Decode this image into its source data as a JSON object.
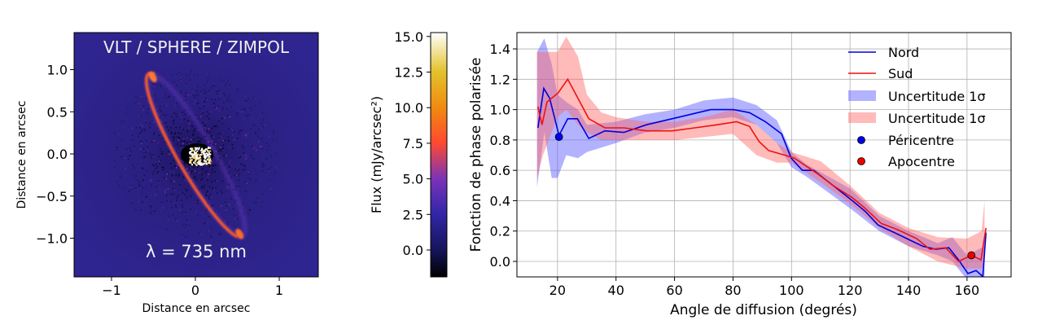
{
  "chart_data": [
    {
      "type": "heatmap",
      "title": "VLT / SPHERE / ZIMPOL",
      "annotation": "λ = 735 nm",
      "xlabel": "Distance en arcsec",
      "ylabel": "Distance en arcsec",
      "xlim": [
        -1.45,
        1.45
      ],
      "ylim": [
        -1.45,
        1.45
      ],
      "xticks": [
        {
          "v": -1,
          "label": "−1"
        },
        {
          "v": 0,
          "label": "0"
        },
        {
          "v": 1,
          "label": "1"
        }
      ],
      "yticks": [
        {
          "v": 1.0,
          "label": "1.0"
        },
        {
          "v": 0.5,
          "label": "0.5"
        },
        {
          "v": 0.0,
          "label": "0.0"
        },
        {
          "v": -0.5,
          "label": "−0.5"
        },
        {
          "v": -1.0,
          "label": "−1.0"
        }
      ],
      "colorbar": {
        "label": "Flux (mJy/arcsec²)",
        "range": [
          -1.9,
          15.3
        ],
        "ticks": [
          {
            "v": 15.0,
            "label": "15.0"
          },
          {
            "v": 12.5,
            "label": "12.5"
          },
          {
            "v": 10.0,
            "label": "10.0"
          },
          {
            "v": 7.5,
            "label": "7.5"
          },
          {
            "v": 5.0,
            "label": "5.0"
          },
          {
            "v": 2.5,
            "label": "2.5"
          },
          {
            "v": 0.0,
            "label": "0.0"
          }
        ],
        "colors": [
          "#000000",
          "#15155a",
          "#3326a8",
          "#7a33b8",
          "#ff4a30",
          "#f08a10",
          "#e2c22a",
          "#ffffff"
        ]
      }
    },
    {
      "type": "line",
      "xlabel": "Angle de diffusion (degrés)",
      "ylabel": "Fonction de phase polarisée",
      "xlim": [
        6,
        175
      ],
      "ylim": [
        -0.1,
        1.5
      ],
      "grid": true,
      "legend_position": "top-right",
      "xticks": [
        20,
        40,
        60,
        80,
        100,
        120,
        140,
        160
      ],
      "yticks": [
        {
          "v": 0.0,
          "label": "0.0"
        },
        {
          "v": 0.2,
          "label": "0.2"
        },
        {
          "v": 0.4,
          "label": "0.4"
        },
        {
          "v": 0.6,
          "label": "0.6"
        },
        {
          "v": 0.8,
          "label": "0.8"
        },
        {
          "v": 1.0,
          "label": "1.0"
        },
        {
          "v": 1.2,
          "label": "1.2"
        },
        {
          "v": 1.4,
          "label": "1.4"
        }
      ],
      "series": [
        {
          "name": "Nord",
          "color": "#0000dd",
          "x": [
            13.3,
            15.3,
            17.3,
            20.5,
            23.5,
            26.8,
            30.7,
            36.2,
            42.7,
            50.4,
            59.2,
            65.8,
            72.4,
            80.1,
            85.6,
            91.1,
            96.6,
            99.9,
            103.7,
            107.6,
            114.2,
            120.8,
            125.2,
            129.6,
            136.2,
            140.5,
            144.9,
            149.3,
            153.8,
            157.1,
            160.3,
            163.1,
            165.4,
            166.5
          ],
          "y": [
            0.88,
            1.14,
            1.075,
            0.83,
            0.94,
            0.94,
            0.81,
            0.86,
            0.85,
            0.9,
            0.94,
            0.97,
            1.0,
            1.0,
            0.98,
            0.92,
            0.84,
            0.68,
            0.6,
            0.6,
            0.5,
            0.4,
            0.33,
            0.24,
            0.18,
            0.14,
            0.1,
            0.08,
            0.09,
            0.01,
            -0.08,
            -0.06,
            -0.1,
            0.19
          ]
        },
        {
          "name": "Sud",
          "color": "#ee1111",
          "x": [
            13.3,
            14.7,
            16.4,
            20.2,
            23.5,
            27.4,
            30.7,
            36.2,
            42.7,
            50.4,
            59.2,
            66.9,
            74.6,
            81.2,
            85.6,
            88.9,
            92.2,
            97.7,
            101.0,
            108.7,
            114.2,
            120.8,
            125.2,
            130.7,
            136.2,
            142.8,
            147.3,
            152.7,
            157.1,
            161.5,
            164.8,
            166.5
          ],
          "y": [
            1.02,
            0.9,
            1.05,
            1.11,
            1.2,
            1.06,
            0.94,
            0.88,
            0.88,
            0.86,
            0.86,
            0.88,
            0.9,
            0.92,
            0.89,
            0.79,
            0.73,
            0.7,
            0.68,
            0.58,
            0.5,
            0.42,
            0.35,
            0.25,
            0.21,
            0.15,
            0.08,
            0.09,
            0.0,
            0.04,
            0.01,
            0.22
          ]
        }
      ],
      "bands": [
        {
          "name": "Uncertitude 1σ",
          "color": "#5555ff",
          "x": [
            13,
            15.5,
            18,
            20,
            23,
            27,
            30,
            40,
            50,
            60,
            70,
            80,
            88,
            95,
            100,
            105,
            120,
            130,
            140,
            150,
            155,
            160,
            166
          ],
          "lower": [
            0.49,
            0.85,
            0.55,
            0.55,
            0.7,
            0.68,
            0.72,
            0.78,
            0.85,
            0.88,
            0.93,
            0.95,
            0.9,
            0.78,
            0.62,
            0.56,
            0.35,
            0.2,
            0.1,
            0.04,
            0.0,
            -0.12,
            -0.12
          ],
          "upper": [
            1.38,
            1.47,
            1.3,
            1.1,
            1.05,
            1.0,
            0.9,
            0.92,
            0.97,
            1.0,
            1.06,
            1.08,
            1.03,
            0.93,
            0.72,
            0.64,
            0.48,
            0.3,
            0.2,
            0.12,
            0.16,
            0.04,
            0.1
          ]
        },
        {
          "name": "Uncertitude 1σ",
          "color": "#ff6666",
          "x": [
            13,
            15,
            20,
            23,
            27,
            30,
            35,
            40,
            50,
            60,
            70,
            80,
            88,
            95,
            100,
            110,
            120,
            130,
            140,
            150,
            160,
            165,
            166
          ],
          "lower": [
            0.55,
            0.7,
            0.95,
            1.0,
            0.9,
            0.85,
            0.8,
            0.8,
            0.8,
            0.8,
            0.82,
            0.84,
            0.7,
            0.65,
            0.65,
            0.52,
            0.38,
            0.22,
            0.1,
            0.0,
            -0.05,
            -0.05,
            0.0
          ],
          "upper": [
            1.38,
            1.38,
            1.38,
            1.48,
            1.35,
            1.1,
            0.98,
            0.95,
            0.92,
            0.92,
            0.95,
            1.0,
            0.9,
            0.78,
            0.72,
            0.66,
            0.5,
            0.32,
            0.22,
            0.16,
            0.15,
            0.2,
            0.4
          ]
        }
      ],
      "markers": [
        {
          "name": "Péricentre",
          "x": 20.5,
          "y": 0.82,
          "color": "#0000ee"
        },
        {
          "name": "Apocentre",
          "x": 161.5,
          "y": 0.04,
          "color": "#ee0000"
        }
      ]
    }
  ]
}
